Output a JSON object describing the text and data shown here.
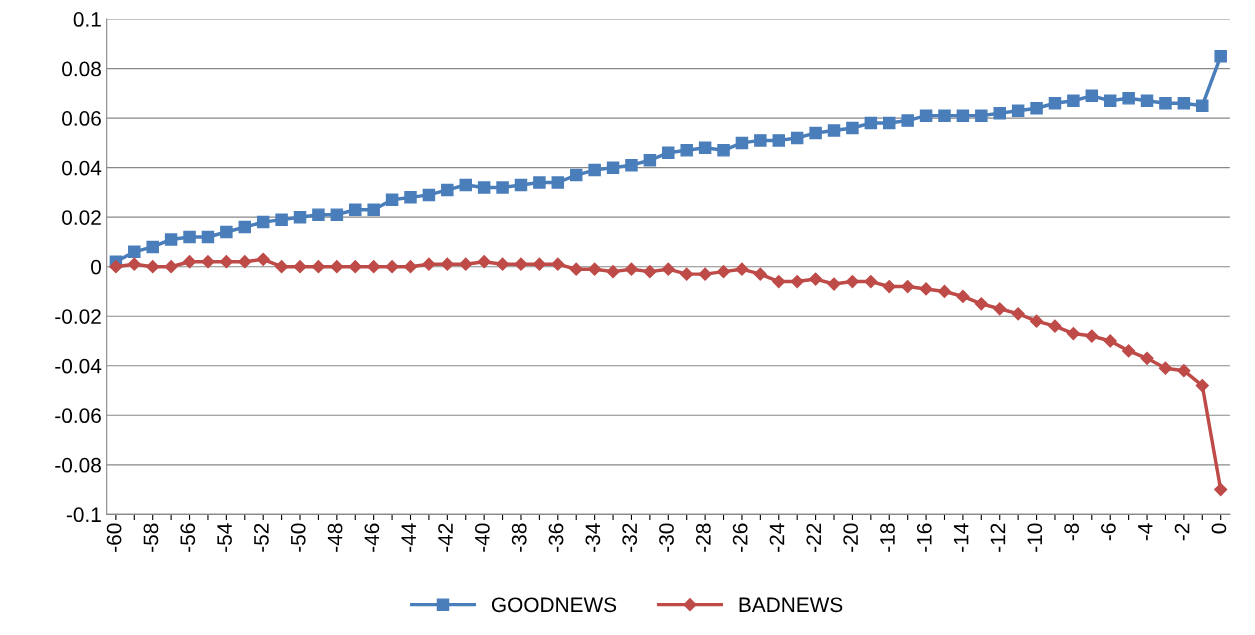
{
  "chart_data": {
    "type": "line",
    "categories": [
      "-60",
      null,
      "-58",
      null,
      "-56",
      null,
      "-54",
      null,
      "-52",
      null,
      "-50",
      null,
      "-48",
      null,
      "-46",
      null,
      "-44",
      null,
      "-42",
      null,
      "-40",
      null,
      "-38",
      null,
      "-36",
      null,
      "-34",
      null,
      "-32",
      null,
      "-30",
      null,
      "-28",
      null,
      "-26",
      null,
      "-24",
      null,
      "-22",
      null,
      "-20",
      null,
      "-18",
      null,
      "-16",
      null,
      "-14",
      null,
      "-12",
      null,
      "-10",
      null,
      "-8",
      null,
      "-6",
      null,
      "-4",
      null,
      "-2",
      null,
      "0"
    ],
    "series": [
      {
        "name": "GOODNEWS",
        "color": "#4a7ebb",
        "marker": "square",
        "values": [
          0.002,
          0.006,
          0.008,
          0.011,
          0.012,
          0.012,
          0.014,
          0.016,
          0.018,
          0.019,
          0.02,
          0.021,
          0.021,
          0.023,
          0.023,
          0.027,
          0.028,
          0.029,
          0.031,
          0.033,
          0.032,
          0.032,
          0.033,
          0.034,
          0.034,
          0.037,
          0.039,
          0.04,
          0.041,
          0.043,
          0.046,
          0.047,
          0.048,
          0.047,
          0.05,
          0.051,
          0.051,
          0.052,
          0.054,
          0.055,
          0.056,
          0.058,
          0.058,
          0.059,
          0.061,
          0.061,
          0.061,
          0.061,
          0.062,
          0.063,
          0.064,
          0.066,
          0.067,
          0.069,
          0.067,
          0.068,
          0.067,
          0.066,
          0.066,
          0.065,
          0.085
        ]
      },
      {
        "name": "BADNEWS",
        "color": "#be4b48",
        "marker": "diamond",
        "values": [
          0.0,
          0.001,
          0.0,
          0.0,
          0.002,
          0.002,
          0.002,
          0.002,
          0.003,
          0.0,
          0.0,
          0.0,
          0.0,
          0.0,
          0.0,
          0.0,
          0.0,
          0.001,
          0.001,
          0.001,
          0.002,
          0.001,
          0.001,
          0.001,
          0.001,
          -0.001,
          -0.001,
          -0.002,
          -0.001,
          -0.002,
          -0.001,
          -0.003,
          -0.003,
          -0.002,
          -0.001,
          -0.003,
          -0.006,
          -0.006,
          -0.005,
          -0.007,
          -0.006,
          -0.006,
          -0.008,
          -0.008,
          -0.009,
          -0.01,
          -0.012,
          -0.015,
          -0.017,
          -0.019,
          -0.022,
          -0.024,
          -0.027,
          -0.028,
          -0.03,
          -0.034,
          -0.037,
          -0.041,
          -0.042,
          -0.048,
          -0.09
        ]
      }
    ],
    "ylim": [
      -0.1,
      0.1
    ],
    "yticks": [
      {
        "value": -0.1,
        "label": "-0.1"
      },
      {
        "value": -0.08,
        "label": "-0.08"
      },
      {
        "value": -0.06,
        "label": "-0.06"
      },
      {
        "value": -0.04,
        "label": "-0.04"
      },
      {
        "value": -0.02,
        "label": "-0.02"
      },
      0,
      0.02,
      0.04,
      0.06,
      0.08,
      0.1
    ],
    "grid": "y",
    "legend": "bottom"
  }
}
